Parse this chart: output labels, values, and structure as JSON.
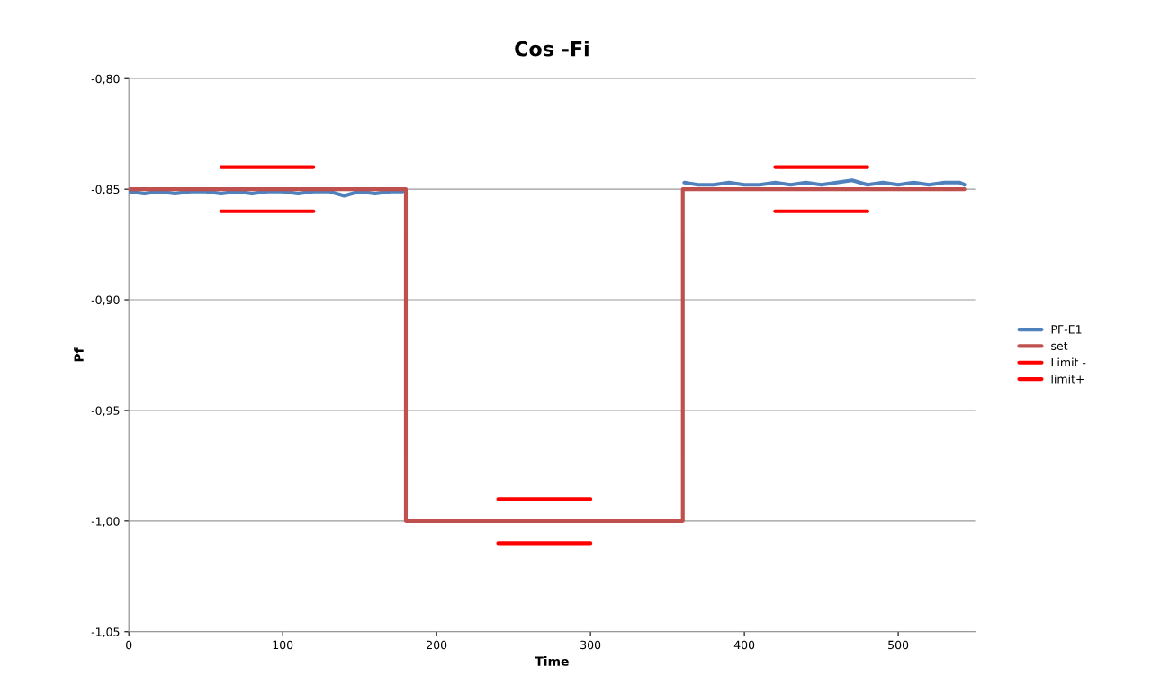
{
  "chart_data": {
    "type": "line",
    "title": "Cos -Fi",
    "xlabel": "Time",
    "ylabel": "Pf",
    "xlim": [
      0,
      550
    ],
    "xticks": [
      0,
      100,
      200,
      300,
      400,
      500
    ],
    "ylim": [
      -1.05,
      -0.8
    ],
    "yticks": [
      {
        "value": -1.05,
        "label": "-1,05"
      },
      {
        "value": -1.0,
        "label": "-1,00"
      },
      {
        "value": -0.95,
        "label": "-0,95"
      },
      {
        "value": -0.9,
        "label": "-0,90"
      },
      {
        "value": -0.85,
        "label": "-0,85"
      },
      {
        "value": -0.8,
        "label": "-0,80"
      }
    ],
    "grid": "y",
    "legend": "right",
    "marker": "none",
    "line_style": "solid",
    "series": [
      {
        "name": "PF-E1",
        "color": "#4f81bd",
        "x": [
          0,
          10,
          20,
          30,
          40,
          50,
          60,
          70,
          80,
          90,
          100,
          110,
          120,
          130,
          140,
          150,
          160,
          170,
          178,
          180,
          190,
          220,
          260,
          300,
          340,
          359,
          361,
          370,
          380,
          390,
          400,
          410,
          420,
          430,
          440,
          450,
          460,
          470,
          480,
          490,
          500,
          510,
          520,
          530,
          540,
          543
        ],
        "values": [
          -0.851,
          -0.852,
          -0.851,
          -0.852,
          -0.851,
          -0.851,
          -0.852,
          -0.851,
          -0.852,
          -0.851,
          -0.851,
          -0.852,
          -0.851,
          -0.851,
          -0.853,
          -0.851,
          -0.852,
          -0.851,
          -0.851,
          null,
          null,
          null,
          null,
          null,
          null,
          null,
          -0.847,
          -0.848,
          -0.848,
          -0.847,
          -0.848,
          -0.848,
          -0.847,
          -0.848,
          -0.847,
          -0.848,
          -0.847,
          -0.846,
          -0.848,
          -0.847,
          -0.848,
          -0.847,
          -0.848,
          -0.847,
          -0.847,
          -0.848
        ]
      },
      {
        "name": "set",
        "color": "#c0504d",
        "x": [
          0,
          180,
          180,
          360,
          360,
          543
        ],
        "values": [
          -0.85,
          -0.85,
          -1.0,
          -1.0,
          -0.85,
          -0.85
        ]
      },
      {
        "name": "Limit -",
        "color": "#ff0000",
        "x": [
          60,
          120,
          180,
          240,
          300,
          360,
          420,
          480
        ],
        "values": [
          -0.86,
          -0.86,
          null,
          -1.01,
          -1.01,
          null,
          -0.86,
          -0.86
        ]
      },
      {
        "name": "limit+",
        "color": "#ff0000",
        "x": [
          60,
          120,
          180,
          240,
          300,
          360,
          420,
          480
        ],
        "values": [
          -0.84,
          -0.84,
          null,
          -0.99,
          -0.99,
          null,
          -0.84,
          -0.84
        ]
      }
    ]
  }
}
